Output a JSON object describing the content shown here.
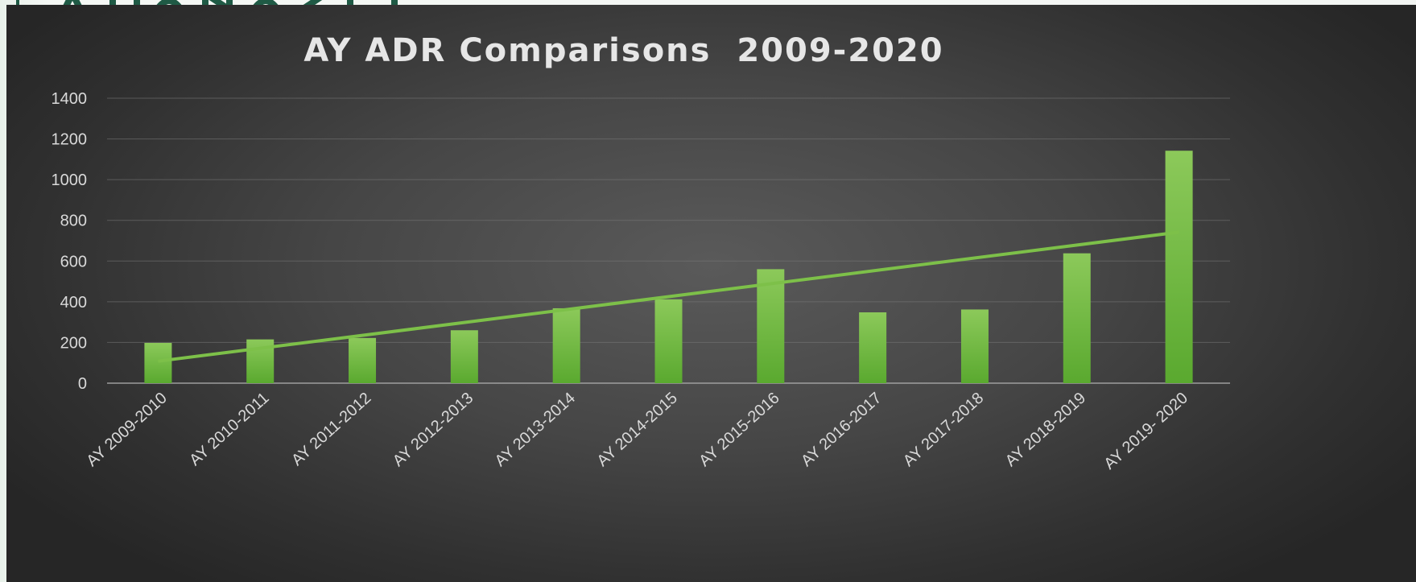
{
  "chart_data": {
    "type": "bar",
    "title": "AY ADR Comparisons  2009-2020",
    "xlabel": "",
    "ylabel": "",
    "categories": [
      "AY 2009-2010",
      "AY 2010-2011",
      "AY 2011-2012",
      "AY 2012-2013",
      "AY 2013-2014",
      "AY 2014-2015",
      "AY 2015-2016",
      "AY 2016-2017",
      "AY 2017-2018",
      "AY 2018-2019",
      "AY 2019- 2020"
    ],
    "values": [
      198,
      215,
      222,
      260,
      368,
      412,
      560,
      348,
      362,
      638,
      1142
    ],
    "trendline": {
      "type": "linear",
      "start_value": 108,
      "end_value": 742
    },
    "ylim": [
      0,
      1400
    ],
    "yticks": [
      0,
      200,
      400,
      600,
      800,
      1000,
      1200,
      1400
    ],
    "grid": true,
    "legend": "none",
    "colors": {
      "bar_top": "#8cc95a",
      "bar_bottom": "#5aa92f",
      "trendline": "#7dc049",
      "gridline": "#7a7a7a",
      "axis_text": "#d9d9d9",
      "title_text": "#e6e6e6"
    }
  }
}
